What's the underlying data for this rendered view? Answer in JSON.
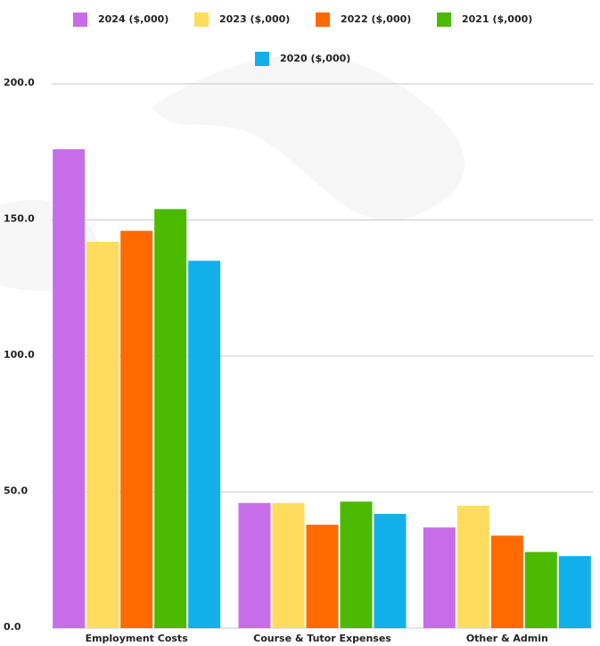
{
  "chart_data": {
    "type": "bar",
    "categories": [
      "Employment Costs",
      "Course & Tutor Expenses",
      "Other & Admin"
    ],
    "series": [
      {
        "name": "2024 ($,000)",
        "color": "#c86de8",
        "values": [
          176,
          46,
          37
        ]
      },
      {
        "name": "2023 ($,000)",
        "color": "#ffdc5e",
        "values": [
          142,
          46,
          45
        ]
      },
      {
        "name": "2022 ($,000)",
        "color": "#ff6a00",
        "values": [
          146,
          38,
          34
        ]
      },
      {
        "name": "2021 ($,000)",
        "color": "#4cbb00",
        "values": [
          154,
          46.5,
          28
        ]
      },
      {
        "name": "2020 ($,000)",
        "color": "#12b0ea",
        "values": [
          135,
          42,
          26.5
        ]
      }
    ],
    "ylim": [
      0,
      200
    ],
    "yticks": [
      {
        "value": 0,
        "label": "0.0"
      },
      {
        "value": 50,
        "label": "50.0"
      },
      {
        "value": 100,
        "label": "100.0"
      },
      {
        "value": 150,
        "label": "150.0"
      },
      {
        "value": 200,
        "label": "200.0"
      }
    ],
    "grid": true,
    "legend": "top"
  }
}
